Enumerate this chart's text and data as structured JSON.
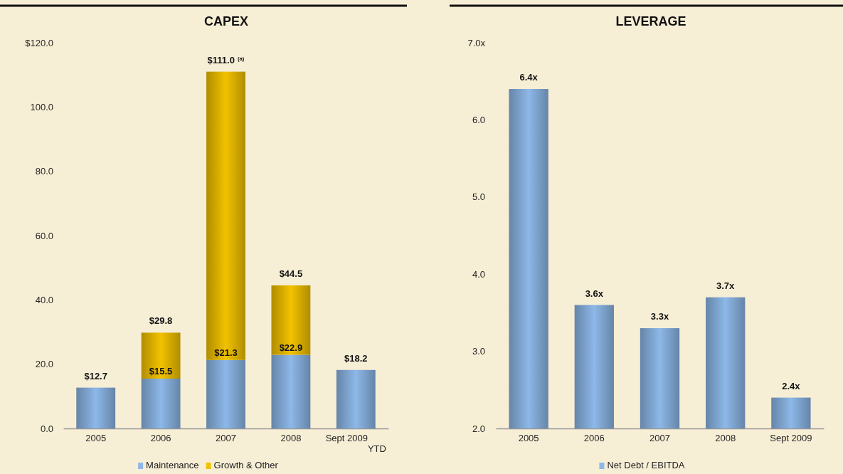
{
  "chart_data": [
    {
      "type": "bar",
      "title": "CAPEX",
      "categories": [
        "2005",
        "2006",
        "2007",
        "2008",
        "Sept 2009 YTD"
      ],
      "stacked": true,
      "ylim": [
        0,
        120
      ],
      "yticks": [
        {
          "value": 0,
          "label": "0.0"
        },
        {
          "value": 20,
          "label": "20.0"
        },
        {
          "value": 40,
          "label": "40.0"
        },
        {
          "value": 60,
          "label": "60.0"
        },
        {
          "value": 80,
          "label": "80.0"
        },
        {
          "value": 100,
          "label": "100.0"
        },
        {
          "value": 120,
          "label": "$120.0"
        }
      ],
      "series": [
        {
          "name": "Maintenance",
          "color": "#8db8e8",
          "values": [
            12.7,
            15.5,
            21.3,
            22.9,
            18.2
          ],
          "value_labels": [
            null,
            "$15.5",
            "$21.3",
            "$22.9",
            null
          ]
        },
        {
          "name": "Growth & Other",
          "color": "#f2c200",
          "values": [
            null,
            14.3,
            89.7,
            21.6,
            null
          ]
        }
      ],
      "totals": [
        "$12.7",
        "$29.8",
        "$111.0$^{(a)}$",
        "$44.5",
        "$18.2"
      ],
      "legend": "bottom",
      "grid": false
    },
    {
      "type": "bar",
      "title": "LEVERAGE",
      "categories": [
        "2005",
        "2006",
        "2007",
        "2008",
        "Sept 2009"
      ],
      "ylim": [
        2,
        7
      ],
      "yticks": [
        {
          "value": 2,
          "label": "2.0"
        },
        {
          "value": 3,
          "label": "3.0"
        },
        {
          "value": 4,
          "label": "4.0"
        },
        {
          "value": 5,
          "label": "5.0"
        },
        {
          "value": 6,
          "label": "6.0"
        },
        {
          "value": 7,
          "label": "7.0x"
        }
      ],
      "series": [
        {
          "name": "Net Debt / EBITDA",
          "color": "#8db8e8",
          "values": [
            6.4,
            3.6,
            3.3,
            3.7,
            2.4
          ],
          "value_labels": [
            "6.4x",
            "3.6x",
            "3.3x",
            "3.7x",
            "2.4x"
          ]
        }
      ],
      "legend": "bottom",
      "grid": false
    }
  ]
}
